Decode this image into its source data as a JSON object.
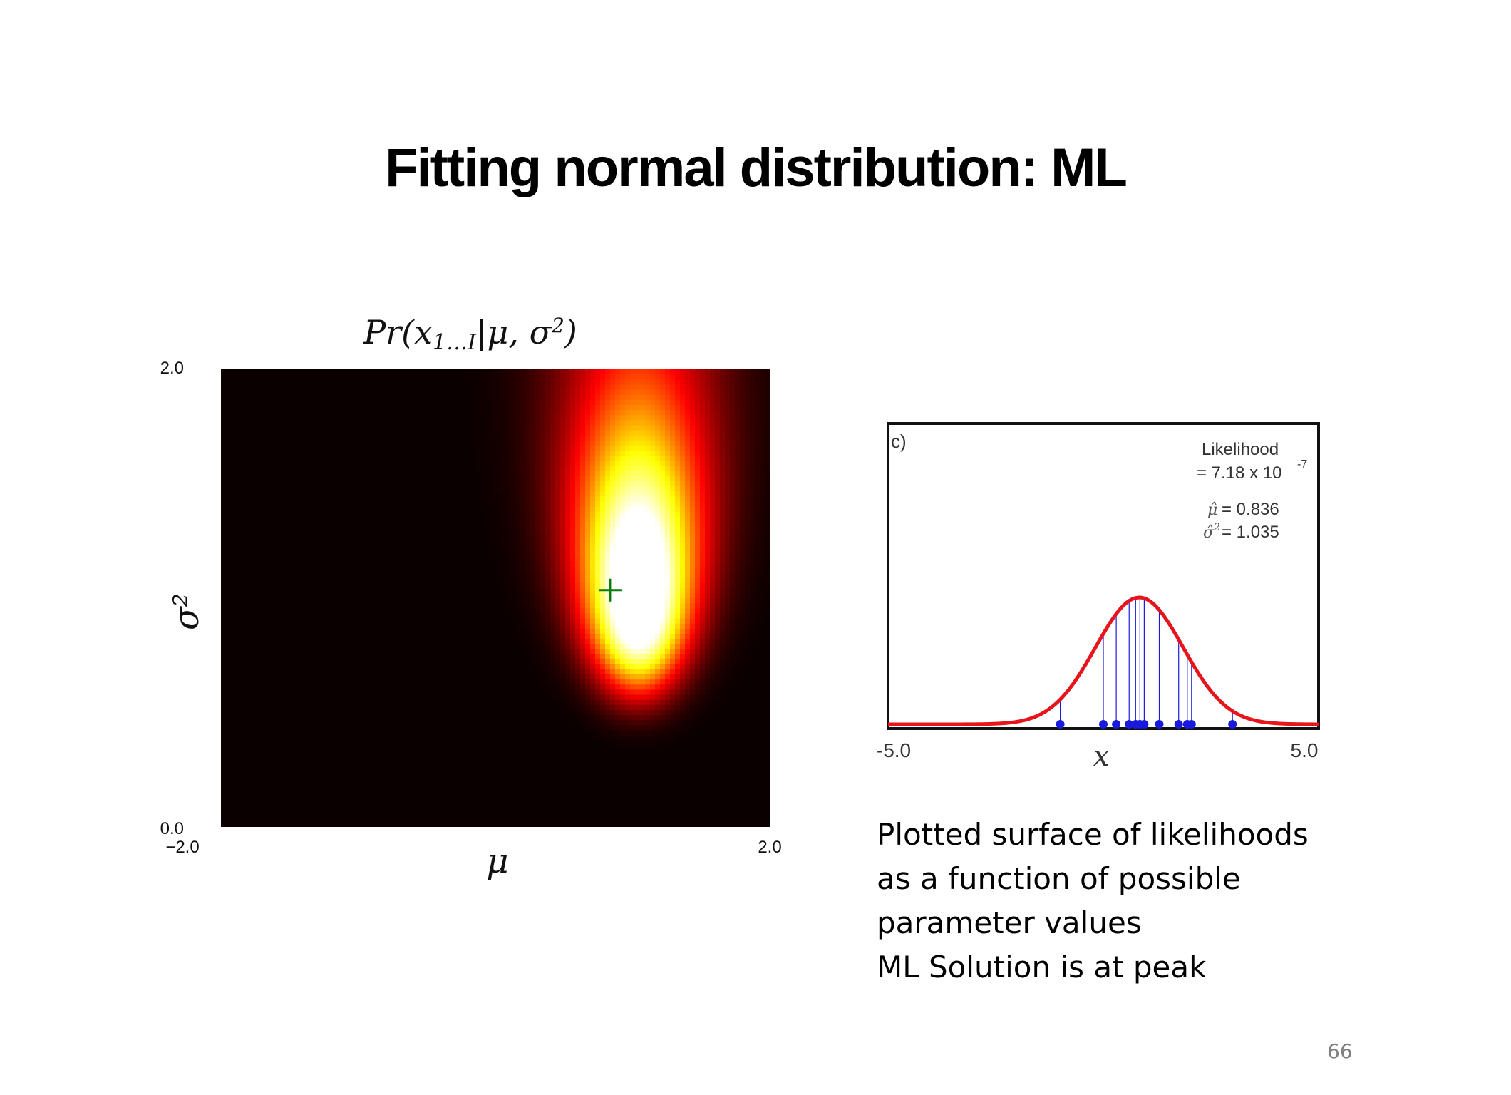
{
  "slide": {
    "title": "Fitting normal distribution: ML",
    "caption": [
      "Plotted surface of likelihoods",
      "as a function of possible",
      "parameter values",
      "ML Solution is at peak"
    ],
    "page_number": "66"
  },
  "chart_data": [
    {
      "type": "heatmap",
      "title": "Pr(x1...I|μ,σ²)",
      "xlabel": "μ",
      "ylabel": "σ²",
      "xlim": [
        -2.0,
        2.0
      ],
      "ylim": [
        0.0,
        2.0
      ],
      "x_tick_labels": [
        "−2.0",
        "2.0"
      ],
      "y_tick_labels": [
        "0.0",
        "2.0"
      ],
      "colormap": "hot",
      "peak": {
        "mu": 0.836,
        "sigma2": 1.035
      },
      "peak_marker": {
        "symbol": "+",
        "color": "#0a7a0a"
      }
    },
    {
      "type": "line",
      "panel_label": "c)",
      "xlabel": "x",
      "xlim": [
        -5.0,
        5.0
      ],
      "x_tick_labels": [
        "-5.0",
        "5.0"
      ],
      "curve": {
        "name": "normal pdf",
        "mu": 0.836,
        "sigma2": 1.035,
        "color": "#e8141c"
      },
      "data_points": [
        -1.0,
        0.0,
        0.3,
        0.6,
        0.75,
        0.85,
        0.95,
        1.3,
        1.75,
        1.95,
        2.05,
        3.0
      ],
      "point_color": "#1a1adc",
      "annotation": {
        "likelihood_label": "Likelihood",
        "likelihood_value": "= 7.18 x 10",
        "likelihood_exponent": "-7",
        "mu_hat": "= 0.836",
        "sigma_hat": "= 1.035"
      }
    }
  ]
}
